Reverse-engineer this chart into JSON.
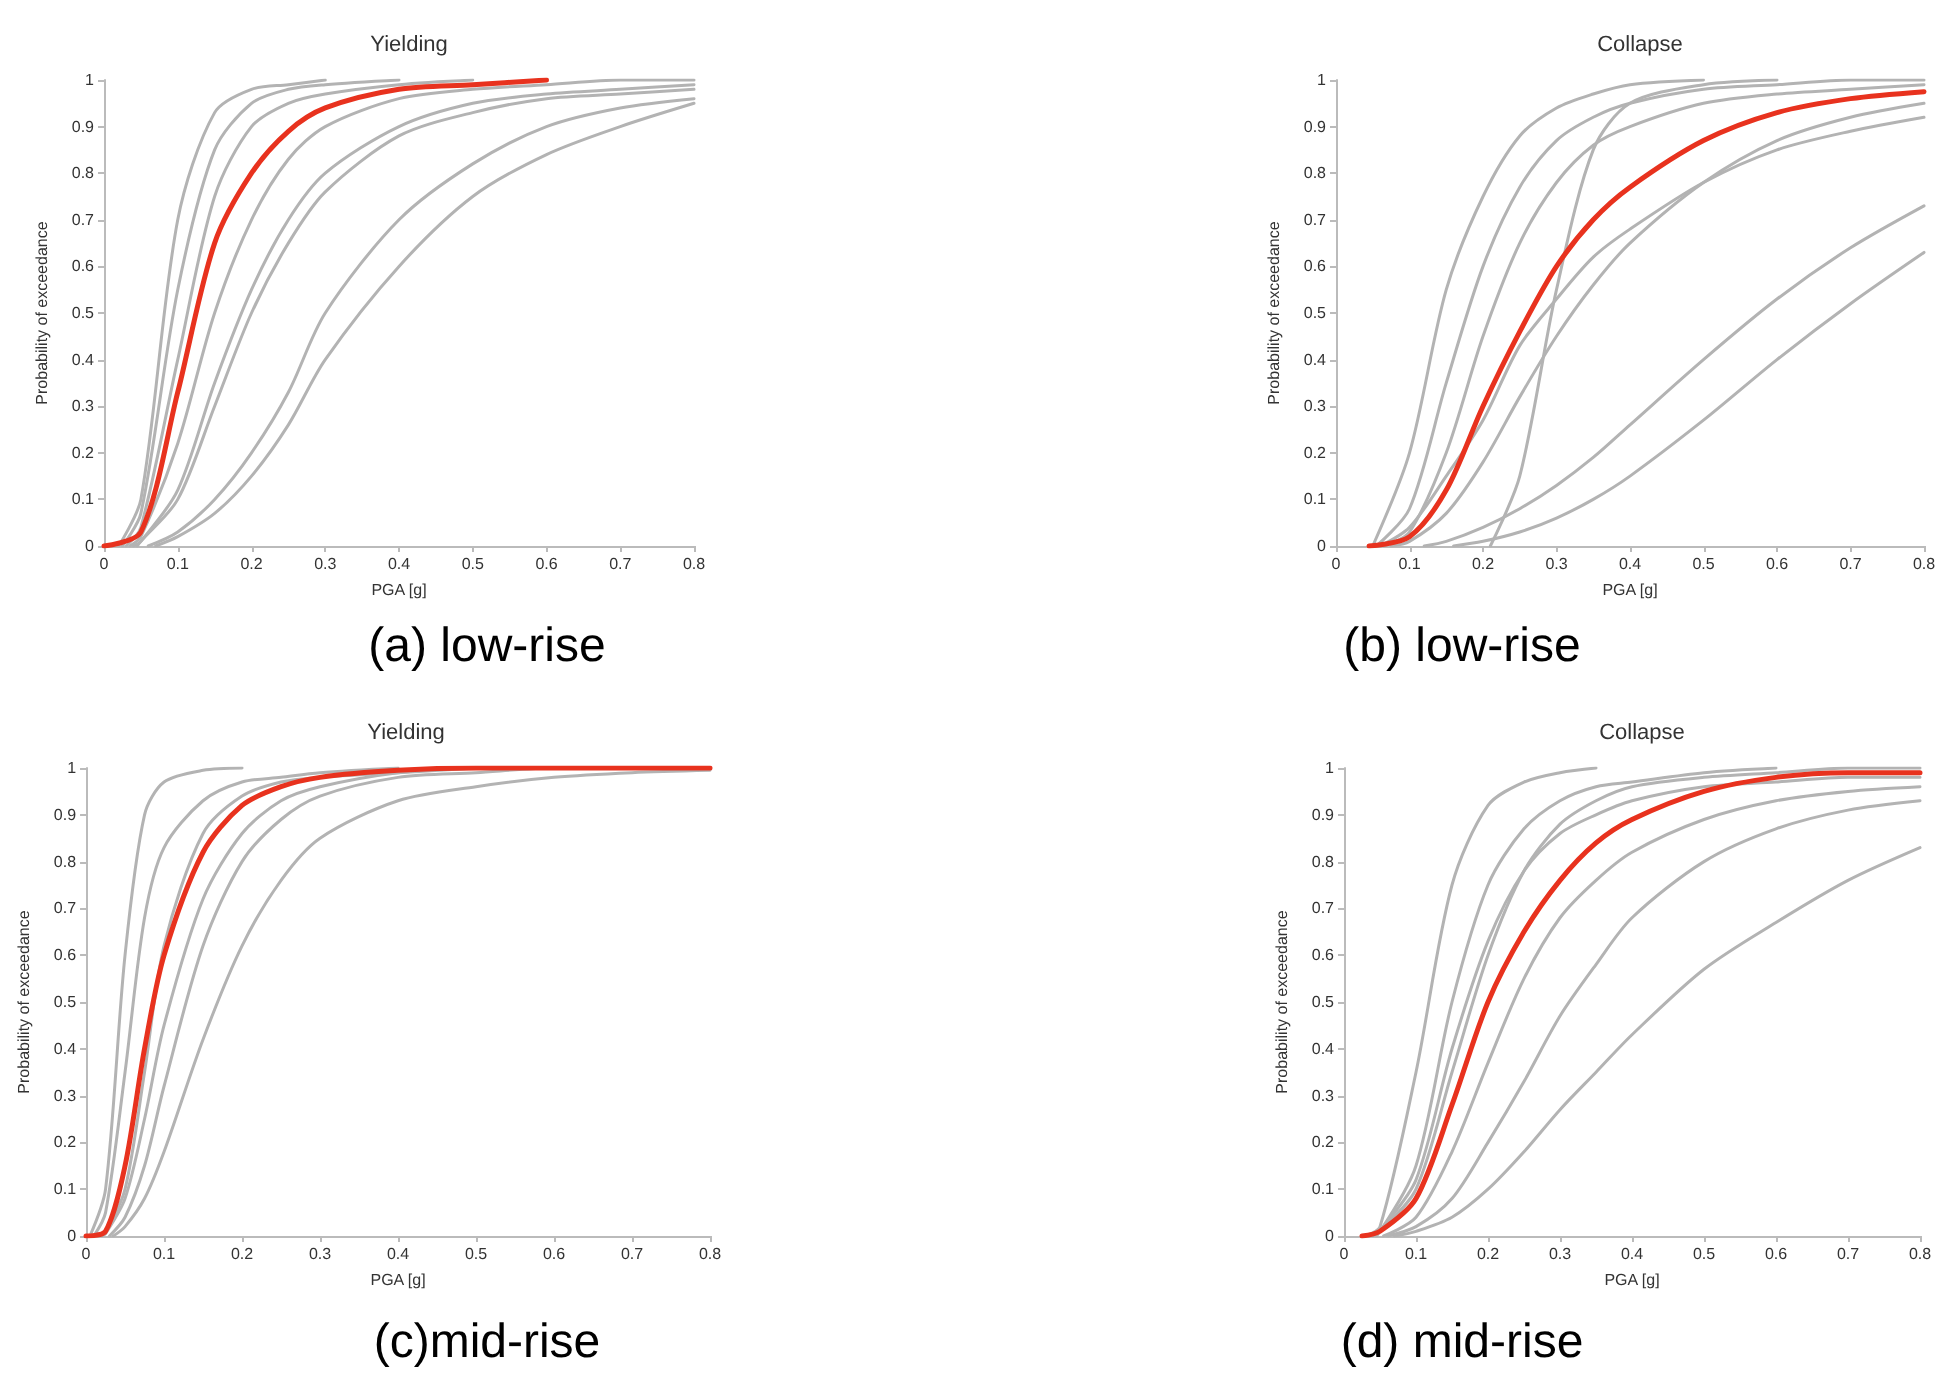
{
  "chart_data": [
    {
      "type": "line",
      "title": "Yielding",
      "xlabel": "PGA [g]",
      "ylabel": "Probability of exceedance",
      "annotations": [
        "(a) low-rise"
      ],
      "marker": "none",
      "grid": false,
      "xlim": [
        0,
        0.8
      ],
      "xticks": [
        0,
        0.1,
        0.2,
        0.3,
        0.4,
        0.5,
        0.6,
        0.7,
        0.8
      ],
      "ylim": [
        0,
        1
      ],
      "yticks": [
        0,
        0.1,
        0.2,
        0.3,
        0.4,
        0.5,
        0.6,
        0.7,
        0.8,
        0.9,
        1
      ],
      "series": [
        {
          "color": "#b3b3b3",
          "x": [
            0.02,
            0.05,
            0.1,
            0.15,
            0.2,
            0.25,
            0.3
          ],
          "values": [
            0,
            0.1,
            0.7,
            0.93,
            0.98,
            0.99,
            1
          ]
        },
        {
          "color": "#b3b3b3",
          "x": [
            0.025,
            0.05,
            0.1,
            0.15,
            0.2,
            0.25,
            0.3,
            0.4
          ],
          "values": [
            0,
            0.07,
            0.55,
            0.85,
            0.95,
            0.98,
            0.99,
            1
          ]
        },
        {
          "color": "#b3b3b3",
          "x": [
            0.03,
            0.05,
            0.1,
            0.15,
            0.2,
            0.25,
            0.3,
            0.4,
            0.5
          ],
          "values": [
            0,
            0.04,
            0.4,
            0.75,
            0.9,
            0.95,
            0.97,
            0.99,
            1
          ]
        },
        {
          "color": "#b3b3b3",
          "x": [
            0.035,
            0.05,
            0.1,
            0.15,
            0.2,
            0.25,
            0.3,
            0.4,
            0.5,
            0.6,
            0.7,
            0.8
          ],
          "values": [
            0,
            0.02,
            0.22,
            0.5,
            0.7,
            0.83,
            0.9,
            0.96,
            0.98,
            0.99,
            1,
            1
          ]
        },
        {
          "color": "#b3b3b3",
          "x": [
            0.04,
            0.05,
            0.1,
            0.15,
            0.2,
            0.25,
            0.3,
            0.4,
            0.5,
            0.6,
            0.7,
            0.8
          ],
          "values": [
            0,
            0.01,
            0.12,
            0.35,
            0.55,
            0.7,
            0.8,
            0.9,
            0.95,
            0.97,
            0.98,
            0.99
          ]
        },
        {
          "color": "#b3b3b3",
          "x": [
            0.045,
            0.05,
            0.1,
            0.15,
            0.2,
            0.25,
            0.3,
            0.4,
            0.5,
            0.6,
            0.7,
            0.8
          ],
          "values": [
            0,
            0.01,
            0.1,
            0.3,
            0.5,
            0.65,
            0.76,
            0.88,
            0.93,
            0.96,
            0.97,
            0.98
          ]
        },
        {
          "color": "#b3b3b3",
          "x": [
            0.06,
            0.1,
            0.15,
            0.2,
            0.25,
            0.3,
            0.4,
            0.5,
            0.6,
            0.7,
            0.8
          ],
          "values": [
            0,
            0.03,
            0.1,
            0.2,
            0.33,
            0.5,
            0.7,
            0.82,
            0.9,
            0.94,
            0.96
          ]
        },
        {
          "color": "#b3b3b3",
          "x": [
            0.07,
            0.1,
            0.15,
            0.2,
            0.25,
            0.3,
            0.4,
            0.5,
            0.6,
            0.7,
            0.8
          ],
          "values": [
            0,
            0.02,
            0.07,
            0.15,
            0.26,
            0.4,
            0.6,
            0.75,
            0.84,
            0.9,
            0.95
          ]
        },
        {
          "color": "#e8321e",
          "x": [
            0,
            0.05,
            0.1,
            0.15,
            0.2,
            0.25,
            0.3,
            0.4,
            0.5,
            0.6
          ],
          "values": [
            0,
            0.03,
            0.33,
            0.65,
            0.8,
            0.89,
            0.94,
            0.98,
            0.99,
            1
          ]
        }
      ]
    },
    {
      "type": "line",
      "title": "Collapse",
      "xlabel": "PGA [g]",
      "ylabel": "Probability of exceedance",
      "annotations": [
        "(b) low-rise"
      ],
      "marker": "none",
      "grid": false,
      "xlim": [
        0,
        0.8
      ],
      "xticks": [
        0,
        0.1,
        0.2,
        0.3,
        0.4,
        0.5,
        0.6,
        0.7,
        0.8
      ],
      "ylim": [
        0,
        1
      ],
      "yticks": [
        0,
        0.1,
        0.2,
        0.3,
        0.4,
        0.5,
        0.6,
        0.7,
        0.8,
        0.9,
        1
      ],
      "series": [
        {
          "color": "#b3b3b3",
          "x": [
            0.05,
            0.1,
            0.15,
            0.2,
            0.25,
            0.3,
            0.35,
            0.4,
            0.5
          ],
          "values": [
            0,
            0.2,
            0.55,
            0.75,
            0.88,
            0.94,
            0.97,
            0.99,
            1
          ]
        },
        {
          "color": "#b3b3b3",
          "x": [
            0.055,
            0.1,
            0.15,
            0.2,
            0.25,
            0.3,
            0.35,
            0.4,
            0.5,
            0.6,
            0.7,
            0.8
          ],
          "values": [
            0,
            0.08,
            0.35,
            0.6,
            0.77,
            0.87,
            0.92,
            0.95,
            0.98,
            0.99,
            1,
            1
          ]
        },
        {
          "color": "#b3b3b3",
          "x": [
            0.21,
            0.25,
            0.3,
            0.35,
            0.4,
            0.5,
            0.6
          ],
          "values": [
            0,
            0.15,
            0.55,
            0.85,
            0.95,
            0.99,
            1
          ]
        },
        {
          "color": "#b3b3b3",
          "x": [
            0.06,
            0.1,
            0.15,
            0.2,
            0.25,
            0.3,
            0.35,
            0.4,
            0.5,
            0.6,
            0.7,
            0.8
          ],
          "values": [
            0,
            0.04,
            0.15,
            0.27,
            0.43,
            0.53,
            0.62,
            0.68,
            0.78,
            0.85,
            0.89,
            0.92
          ]
        },
        {
          "color": "#b3b3b3",
          "x": [
            0.075,
            0.1,
            0.15,
            0.2,
            0.25,
            0.3,
            0.35,
            0.4,
            0.5,
            0.6,
            0.7,
            0.8
          ],
          "values": [
            0,
            0.01,
            0.07,
            0.18,
            0.32,
            0.45,
            0.56,
            0.65,
            0.78,
            0.87,
            0.92,
            0.95
          ]
        },
        {
          "color": "#b3b3b3",
          "x": [
            0.065,
            0.1,
            0.15,
            0.2,
            0.25,
            0.3,
            0.35,
            0.4,
            0.5,
            0.6,
            0.7,
            0.8
          ],
          "values": [
            0,
            0.03,
            0.2,
            0.45,
            0.65,
            0.78,
            0.86,
            0.9,
            0.95,
            0.97,
            0.98,
            0.99
          ]
        },
        {
          "color": "#b3b3b3",
          "x": [
            0.12,
            0.15,
            0.2,
            0.25,
            0.3,
            0.35,
            0.4,
            0.5,
            0.6,
            0.7,
            0.8
          ],
          "values": [
            0,
            0.01,
            0.04,
            0.08,
            0.13,
            0.19,
            0.26,
            0.4,
            0.53,
            0.64,
            0.73
          ]
        },
        {
          "color": "#b3b3b3",
          "x": [
            0.16,
            0.2,
            0.25,
            0.3,
            0.35,
            0.4,
            0.5,
            0.6,
            0.7,
            0.8
          ],
          "values": [
            0,
            0.01,
            0.03,
            0.06,
            0.1,
            0.15,
            0.27,
            0.4,
            0.52,
            0.63
          ]
        },
        {
          "color": "#e8321e",
          "x": [
            0.045,
            0.1,
            0.15,
            0.2,
            0.25,
            0.3,
            0.35,
            0.4,
            0.5,
            0.6,
            0.7,
            0.8
          ],
          "values": [
            0,
            0.02,
            0.12,
            0.3,
            0.46,
            0.6,
            0.7,
            0.77,
            0.87,
            0.93,
            0.96,
            0.975
          ]
        }
      ]
    },
    {
      "type": "line",
      "title": "Yielding",
      "xlabel": "PGA [g]",
      "ylabel": "Probability of exceedance",
      "annotations": [
        "(c)mid-rise"
      ],
      "marker": "none",
      "grid": false,
      "xlim": [
        0,
        0.8
      ],
      "xticks": [
        0,
        0.1,
        0.2,
        0.3,
        0.4,
        0.5,
        0.6,
        0.7,
        0.8
      ],
      "ylim": [
        0,
        1
      ],
      "yticks": [
        0,
        0.1,
        0.2,
        0.3,
        0.4,
        0.5,
        0.6,
        0.7,
        0.8,
        0.9,
        1
      ],
      "series": [
        {
          "color": "#b3b3b3",
          "x": [
            0.005,
            0.025,
            0.05,
            0.075,
            0.1,
            0.15,
            0.2
          ],
          "values": [
            0,
            0.1,
            0.6,
            0.9,
            0.97,
            0.995,
            1
          ]
        },
        {
          "color": "#b3b3b3",
          "x": [
            0.01,
            0.025,
            0.05,
            0.075,
            0.1,
            0.15,
            0.2,
            0.25,
            0.3,
            0.4
          ],
          "values": [
            0,
            0.05,
            0.35,
            0.68,
            0.83,
            0.93,
            0.97,
            0.98,
            0.99,
            1
          ]
        },
        {
          "color": "#b3b3b3",
          "x": [
            0.015,
            0.025,
            0.05,
            0.075,
            0.1,
            0.15,
            0.2,
            0.25,
            0.3,
            0.4,
            0.5
          ],
          "values": [
            0,
            0.01,
            0.1,
            0.35,
            0.62,
            0.86,
            0.94,
            0.97,
            0.98,
            0.99,
            1
          ]
        },
        {
          "color": "#b3b3b3",
          "x": [
            0.02,
            0.025,
            0.05,
            0.075,
            0.1,
            0.15,
            0.2,
            0.25,
            0.3,
            0.4,
            0.5,
            0.6
          ],
          "values": [
            0,
            0.005,
            0.08,
            0.25,
            0.45,
            0.72,
            0.86,
            0.93,
            0.96,
            0.99,
            1,
            1
          ]
        },
        {
          "color": "#b3b3b3",
          "x": [
            0.03,
            0.05,
            0.075,
            0.1,
            0.15,
            0.2,
            0.25,
            0.3,
            0.4,
            0.5,
            0.6,
            0.7
          ],
          "values": [
            0,
            0.04,
            0.15,
            0.32,
            0.62,
            0.8,
            0.89,
            0.94,
            0.98,
            0.99,
            1,
            1
          ]
        },
        {
          "color": "#b3b3b3",
          "x": [
            0.035,
            0.05,
            0.075,
            0.1,
            0.15,
            0.2,
            0.25,
            0.3,
            0.4,
            0.5,
            0.6,
            0.7,
            0.8
          ],
          "values": [
            0,
            0.02,
            0.08,
            0.18,
            0.42,
            0.62,
            0.76,
            0.85,
            0.93,
            0.96,
            0.98,
            0.99,
            0.995
          ]
        },
        {
          "color": "#e8321e",
          "x": [
            0,
            0.025,
            0.05,
            0.075,
            0.1,
            0.15,
            0.2,
            0.25,
            0.3,
            0.4,
            0.5,
            0.6,
            0.7,
            0.8
          ],
          "values": [
            0,
            0.01,
            0.15,
            0.4,
            0.6,
            0.82,
            0.92,
            0.96,
            0.98,
            0.995,
            1,
            1,
            1,
            1
          ]
        }
      ]
    },
    {
      "type": "line",
      "title": "Collapse",
      "xlabel": "PGA [g]",
      "ylabel": "Probability of exceedance",
      "annotations": [
        "(d) mid-rise"
      ],
      "marker": "none",
      "grid": false,
      "xlim": [
        0,
        0.8
      ],
      "xticks": [
        0,
        0.1,
        0.2,
        0.3,
        0.4,
        0.5,
        0.6,
        0.7,
        0.8
      ],
      "ylim": [
        0,
        1
      ],
      "yticks": [
        0,
        0.1,
        0.2,
        0.3,
        0.4,
        0.5,
        0.6,
        0.7,
        0.8,
        0.9,
        1
      ],
      "series": [
        {
          "color": "#b3b3b3",
          "x": [
            0.03,
            0.05,
            0.1,
            0.15,
            0.2,
            0.25,
            0.3,
            0.35
          ],
          "values": [
            0,
            0.02,
            0.35,
            0.75,
            0.92,
            0.97,
            0.99,
            1
          ]
        },
        {
          "color": "#b3b3b3",
          "x": [
            0.035,
            0.05,
            0.1,
            0.15,
            0.2,
            0.25,
            0.3,
            0.35,
            0.4,
            0.5,
            0.6
          ],
          "values": [
            0,
            0.01,
            0.15,
            0.5,
            0.75,
            0.87,
            0.93,
            0.96,
            0.97,
            0.99,
            1
          ]
        },
        {
          "color": "#b3b3b3",
          "x": [
            0.04,
            0.05,
            0.1,
            0.15,
            0.2,
            0.25,
            0.3,
            0.35,
            0.4,
            0.5,
            0.6,
            0.7,
            0.8
          ],
          "values": [
            0,
            0.01,
            0.1,
            0.35,
            0.6,
            0.78,
            0.88,
            0.93,
            0.96,
            0.98,
            0.99,
            1,
            1
          ]
        },
        {
          "color": "#b3b3b3",
          "x": [
            0.045,
            0.05,
            0.1,
            0.15,
            0.2,
            0.25,
            0.3,
            0.35,
            0.4,
            0.5,
            0.6,
            0.7,
            0.8
          ],
          "values": [
            0,
            0.01,
            0.12,
            0.4,
            0.63,
            0.78,
            0.86,
            0.9,
            0.93,
            0.96,
            0.97,
            0.98,
            0.98
          ]
        },
        {
          "color": "#b3b3b3",
          "x": [
            0.055,
            0.1,
            0.15,
            0.2,
            0.25,
            0.3,
            0.35,
            0.4,
            0.5,
            0.6,
            0.7,
            0.8
          ],
          "values": [
            0,
            0.04,
            0.18,
            0.37,
            0.55,
            0.68,
            0.76,
            0.82,
            0.89,
            0.93,
            0.95,
            0.96
          ]
        },
        {
          "color": "#b3b3b3",
          "x": [
            0.06,
            0.1,
            0.15,
            0.2,
            0.25,
            0.3,
            0.35,
            0.4,
            0.5,
            0.6,
            0.7,
            0.8
          ],
          "values": [
            0,
            0.02,
            0.08,
            0.2,
            0.33,
            0.47,
            0.58,
            0.68,
            0.8,
            0.87,
            0.91,
            0.93
          ]
        },
        {
          "color": "#b3b3b3",
          "x": [
            0.07,
            0.1,
            0.15,
            0.2,
            0.25,
            0.3,
            0.35,
            0.4,
            0.5,
            0.6,
            0.7,
            0.8
          ],
          "values": [
            0,
            0.01,
            0.04,
            0.1,
            0.18,
            0.27,
            0.35,
            0.43,
            0.57,
            0.67,
            0.76,
            0.83
          ]
        },
        {
          "color": "#e8321e",
          "x": [
            0.025,
            0.05,
            0.1,
            0.15,
            0.2,
            0.25,
            0.3,
            0.35,
            0.4,
            0.5,
            0.6,
            0.7,
            0.8
          ],
          "values": [
            0,
            0.01,
            0.08,
            0.28,
            0.5,
            0.65,
            0.76,
            0.84,
            0.89,
            0.95,
            0.98,
            0.99,
            0.99
          ]
        }
      ]
    }
  ]
}
